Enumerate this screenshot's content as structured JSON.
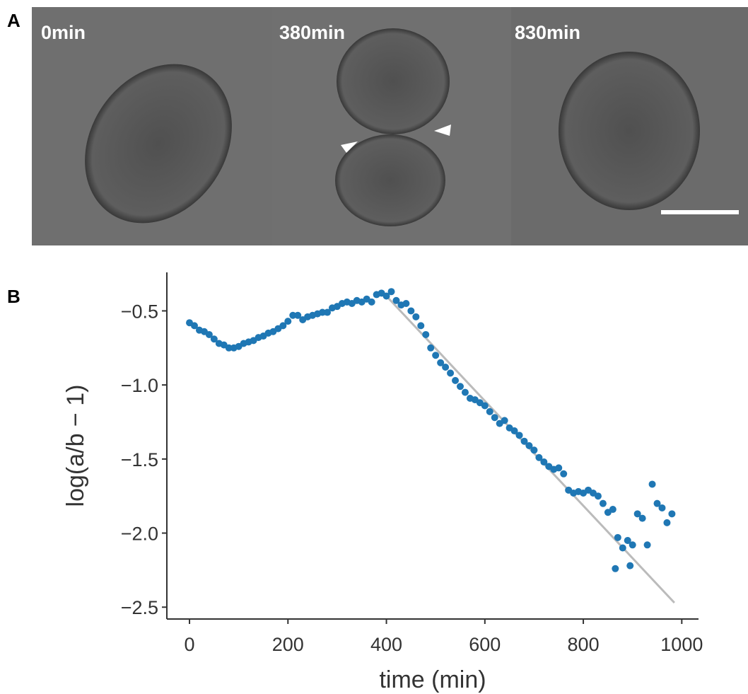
{
  "panels": {
    "a": "A",
    "b": "B"
  },
  "frames": [
    "0min",
    "380min",
    "830min"
  ],
  "chart_data": {
    "type": "scatter",
    "xlabel": "time (min)",
    "ylabel": "log(a/b − 1)",
    "xlim": [
      -46,
      1034
    ],
    "ylim": [
      -2.58,
      -0.24
    ],
    "xticks": [
      0,
      200,
      400,
      600,
      800,
      1000
    ],
    "yticks": [
      {
        "value": -0.5,
        "label": "−0.5"
      },
      {
        "value": -1.0,
        "label": "−1.0"
      },
      {
        "value": -1.5,
        "label": "−1.5"
      },
      {
        "value": -2.0,
        "label": "−2.0"
      },
      {
        "value": -2.5,
        "label": "−2.5"
      }
    ],
    "series": [
      {
        "color": "#1f77b4",
        "x": [
          0,
          10,
          20,
          30,
          40,
          50,
          60,
          70,
          80,
          90,
          100,
          110,
          120,
          130,
          140,
          150,
          160,
          170,
          180,
          190,
          200,
          210,
          220,
          230,
          240,
          250,
          260,
          270,
          280,
          290,
          300,
          310,
          320,
          330,
          340,
          350,
          360,
          370,
          380,
          390,
          400,
          410,
          420,
          430,
          440,
          450,
          460,
          470,
          480,
          490,
          500,
          510,
          520,
          530,
          540,
          550,
          560,
          570,
          580,
          590,
          600,
          610,
          620,
          630,
          640,
          650,
          660,
          670,
          680,
          690,
          700,
          710,
          720,
          730,
          740,
          750,
          760,
          770,
          780,
          790,
          800,
          810,
          820,
          830,
          840,
          850,
          860,
          865,
          870,
          880,
          890,
          895,
          900,
          910,
          920,
          930,
          940,
          950,
          960,
          970,
          980
        ],
        "values": [
          -0.58,
          -0.6,
          -0.63,
          -0.64,
          -0.66,
          -0.69,
          -0.72,
          -0.73,
          -0.75,
          -0.75,
          -0.74,
          -0.72,
          -0.71,
          -0.7,
          -0.68,
          -0.67,
          -0.65,
          -0.64,
          -0.62,
          -0.6,
          -0.57,
          -0.53,
          -0.53,
          -0.56,
          -0.54,
          -0.53,
          -0.52,
          -0.51,
          -0.51,
          -0.48,
          -0.47,
          -0.45,
          -0.44,
          -0.45,
          -0.43,
          -0.44,
          -0.42,
          -0.44,
          -0.39,
          -0.38,
          -0.4,
          -0.37,
          -0.43,
          -0.46,
          -0.45,
          -0.5,
          -0.54,
          -0.6,
          -0.66,
          -0.75,
          -0.8,
          -0.85,
          -0.88,
          -0.92,
          -0.97,
          -1.01,
          -1.05,
          -1.09,
          -1.1,
          -1.12,
          -1.14,
          -1.18,
          -1.22,
          -1.26,
          -1.24,
          -1.29,
          -1.31,
          -1.34,
          -1.38,
          -1.41,
          -1.44,
          -1.49,
          -1.52,
          -1.55,
          -1.57,
          -1.56,
          -1.6,
          -1.71,
          -1.73,
          -1.72,
          -1.73,
          -1.71,
          -1.73,
          -1.75,
          -1.8,
          -1.86,
          -1.84,
          -2.24,
          -2.03,
          -2.1,
          -2.05,
          -2.22,
          -2.08,
          -1.87,
          -1.9,
          -2.08,
          -1.67,
          -1.8,
          -1.83,
          -1.93,
          -1.87
        ]
      }
    ],
    "fit": {
      "color": "#bbbbbb",
      "x": [
        400,
        985
      ],
      "values": [
        -0.4,
        -2.47
      ]
    }
  }
}
